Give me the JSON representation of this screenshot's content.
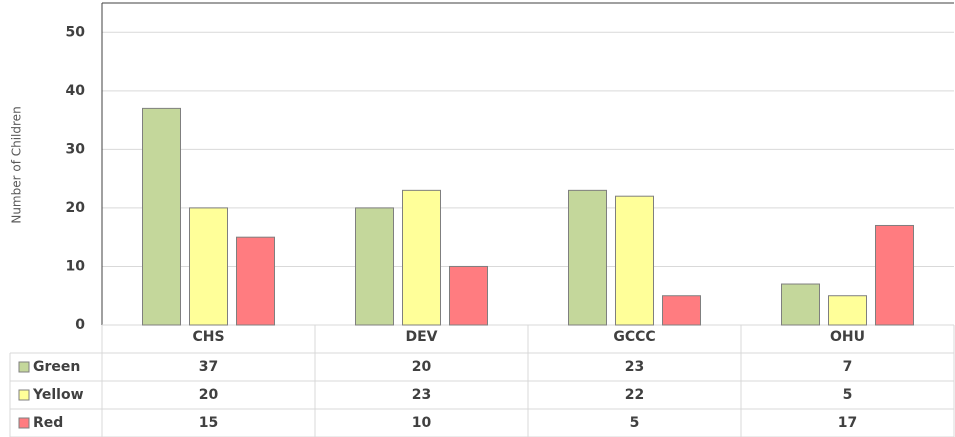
{
  "chart_data": {
    "type": "bar",
    "y_label": "Number of Children",
    "categories": [
      "CHS",
      "DEV",
      "GCCC",
      "OHU"
    ],
    "series": [
      {
        "name": "Green",
        "color": "#c4d79b",
        "values": [
          37,
          20,
          23,
          7
        ]
      },
      {
        "name": "Yellow",
        "color": "#ffff99",
        "values": [
          20,
          23,
          22,
          5
        ]
      },
      {
        "name": "Red",
        "color": "#ff7c80",
        "values": [
          15,
          10,
          5,
          17
        ]
      }
    ],
    "ylim": [
      0,
      55
    ],
    "yticks": [
      0,
      10,
      20,
      30,
      40,
      50
    ],
    "grid": true,
    "legend": "table"
  }
}
